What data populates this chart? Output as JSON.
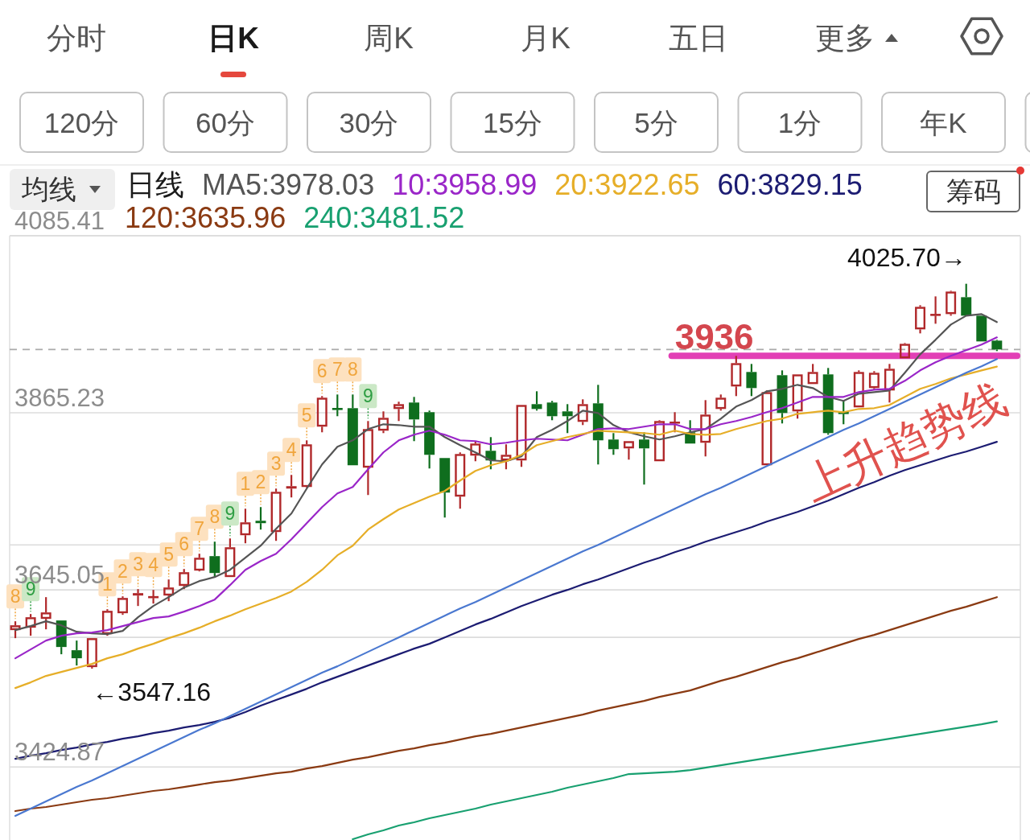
{
  "chart_data": {
    "type": "candlestick",
    "legend_title": "日线",
    "legend": "top",
    "grid": "y",
    "tick_labels": "y",
    "categories": [
      null,
      null,
      null,
      null,
      null,
      null,
      null,
      null,
      null,
      null,
      null,
      null,
      null,
      null,
      null,
      null,
      null,
      null,
      null,
      null,
      null,
      null,
      null,
      null,
      null,
      null,
      null,
      null,
      null,
      null,
      null,
      null,
      null,
      null,
      null,
      null,
      null,
      null,
      null,
      null,
      null,
      null,
      null,
      null,
      null,
      null,
      null,
      null,
      null,
      null,
      null,
      null,
      null,
      null,
      null,
      null,
      null,
      null,
      null,
      null,
      null,
      null,
      null,
      null,
      null
    ],
    "ylim": [
      3334,
      4085.41
    ],
    "yticks": [
      4085.41,
      3865.23,
      {
        "value": 3701,
        "label": null
      },
      3645.05,
      {
        "value": 3586,
        "label": null
      },
      3424.87
    ],
    "series": [
      {
        "ohlc": [
          [
            3595,
            3606,
            3585,
            3601
          ],
          [
            3598,
            3615,
            3588,
            3611
          ],
          [
            3609,
            3636,
            3596,
            3617
          ],
          [
            3607,
            3607,
            3565,
            3574
          ],
          [
            3570,
            3582,
            3551,
            3560
          ],
          [
            3549,
            3585,
            3547.16,
            3585
          ],
          [
            3590,
            3621,
            3588,
            3619
          ],
          [
            3616,
            3637,
            3614,
            3635
          ],
          [
            3638,
            3646,
            3625,
            3641
          ],
          [
            3635,
            3645,
            3628,
            3637
          ],
          [
            3638,
            3658,
            3631,
            3648
          ],
          [
            3650,
            3671,
            3646,
            3667
          ],
          [
            3669,
            3690,
            3668,
            3685
          ],
          [
            3687,
            3705,
            3661,
            3666
          ],
          [
            3661,
            3709,
            3661,
            3698
          ],
          [
            3713,
            3746,
            3703,
            3729
          ],
          [
            3731,
            3748,
            3720,
            3728
          ],
          [
            3717,
            3771,
            3706,
            3767
          ],
          [
            3771,
            3788,
            3760,
            3774
          ],
          [
            3773,
            3831,
            3772,
            3826
          ],
          [
            3848,
            3886,
            3841,
            3884
          ],
          [
            3871,
            3888,
            3861,
            3869
          ],
          [
            3871,
            3888,
            3800,
            3800
          ],
          [
            3797,
            3855,
            3763,
            3845
          ],
          [
            3843,
            3867,
            3840,
            3859
          ],
          [
            3870,
            3879,
            3855,
            3876
          ],
          [
            3878,
            3885,
            3830,
            3857
          ],
          [
            3866,
            3868,
            3796,
            3813
          ],
          [
            3809,
            3809,
            3735,
            3766
          ],
          [
            3761,
            3816,
            3746,
            3814
          ],
          [
            3812,
            3830,
            3805,
            3827
          ],
          [
            3818,
            3835,
            3795,
            3806
          ],
          [
            3806,
            3826,
            3795,
            3813
          ],
          [
            3806,
            3875,
            3798,
            3875
          ],
          [
            3876,
            3892,
            3868,
            3870
          ],
          [
            3878,
            3880,
            3856,
            3861
          ],
          [
            3867,
            3876,
            3840,
            3861
          ],
          [
            3854,
            3882,
            3850,
            3876
          ],
          [
            3877,
            3900,
            3801,
            3831
          ],
          [
            3832,
            3840,
            3813,
            3820
          ],
          [
            3821,
            3830,
            3807,
            3830
          ],
          [
            3832,
            3841,
            3776,
            3821
          ],
          [
            3805,
            3856,
            3805,
            3855
          ],
          [
            3852,
            3866,
            3841,
            3854
          ],
          [
            3841,
            3856,
            3827,
            3827
          ],
          [
            3828,
            3881,
            3811,
            3863
          ],
          [
            3870,
            3888,
            3868,
            3884
          ],
          [
            3898,
            3936,
            3886,
            3927
          ],
          [
            3916,
            3926,
            3886,
            3896
          ],
          [
            3800,
            3893,
            3800,
            3891
          ],
          [
            3912,
            3918,
            3852,
            3865
          ],
          [
            3867,
            3913,
            3858,
            3913
          ],
          [
            3901,
            3926,
            3901,
            3916
          ],
          [
            3913,
            3921,
            3838,
            3840
          ],
          [
            3866,
            3881,
            3851,
            3864
          ],
          [
            3872,
            3918,
            3872,
            3916
          ],
          [
            3896,
            3917,
            3894,
            3915
          ],
          [
            3893,
            3926,
            3878,
            3920
          ],
          [
            3933,
            3952,
            3933,
            3951
          ],
          [
            3969,
            3999,
            3964,
            3997
          ],
          [
            3986,
            4010,
            3976,
            3988
          ],
          [
            3988,
            4017,
            3986,
            4016
          ],
          [
            4009,
            4025.7,
            3986,
            3986
          ],
          [
            3986,
            3986,
            3954,
            3954
          ],
          [
            3955,
            3956,
            3942,
            3944
          ]
        ],
        "value_labels": [
          "8",
          "9",
          null,
          null,
          null,
          null,
          "1",
          "2",
          "3",
          "4",
          "5",
          "6",
          "7",
          "8",
          "9",
          "1",
          "2",
          "3",
          "4",
          "5",
          "6",
          "7",
          "8",
          "9",
          null,
          null,
          null,
          null,
          null,
          null,
          null,
          null,
          null,
          null,
          null,
          null,
          null,
          null,
          null,
          null,
          null,
          null,
          null,
          null,
          null,
          null,
          null,
          null,
          null,
          null,
          null,
          null,
          null,
          null,
          null,
          null,
          null,
          null,
          null,
          null,
          null,
          null,
          null,
          null,
          null
        ]
      },
      {
        "type": "line",
        "name": "MA5:3978.03",
        "color": "#555555",
        "values": [
          3595,
          3600,
          3606,
          3601,
          3593,
          3591,
          3590,
          3594,
          3611,
          3625,
          3636,
          3648,
          3656,
          3661,
          3670,
          3685,
          3700,
          3721,
          3740,
          3771,
          3801,
          3823,
          3831,
          3845,
          3851,
          3850,
          3848,
          3848,
          3835,
          3825,
          3816,
          3806,
          3805,
          3811,
          3835,
          3844,
          3855,
          3868,
          3865,
          3850,
          3841,
          3836,
          3832,
          3836,
          3841,
          3845,
          3858,
          3873,
          3881,
          3892,
          3895,
          3900,
          3896,
          3885,
          3880,
          3889,
          3891,
          3893,
          3915,
          3938,
          3956,
          3975,
          3986,
          3988,
          3978.03
        ]
      },
      {
        "type": "line",
        "name": "10:3958.99",
        "color": "#9a26c8",
        "values": [
          3560,
          3571,
          3582,
          3588,
          3591,
          3592,
          3595,
          3600,
          3605,
          3610,
          3612,
          3618,
          3625,
          3633,
          3651,
          3670,
          3681,
          3690,
          3708,
          3728,
          3748,
          3765,
          3773,
          3795,
          3816,
          3831,
          3838,
          3843,
          3838,
          3831,
          3830,
          3826,
          3828,
          3831,
          3833,
          3832,
          3831,
          3838,
          3845,
          3846,
          3845,
          3848,
          3851,
          3851,
          3845,
          3845,
          3851,
          3855,
          3860,
          3866,
          3871,
          3878,
          3885,
          3885,
          3885,
          3891,
          3894,
          3895,
          3905,
          3918,
          3928,
          3936,
          3943,
          3950,
          3958.99
        ]
      },
      {
        "type": "line",
        "name": "20:3922.65",
        "color": "#e6ae28",
        "values": [
          3523,
          3530,
          3538,
          3543,
          3548,
          3553,
          3560,
          3565,
          3572,
          3578,
          3585,
          3591,
          3598,
          3606,
          3613,
          3621,
          3628,
          3635,
          3643,
          3655,
          3670,
          3688,
          3700,
          3720,
          3733,
          3745,
          3753,
          3761,
          3768,
          3781,
          3793,
          3800,
          3805,
          3813,
          3825,
          3830,
          3835,
          3839,
          3843,
          3842,
          3841,
          3840,
          3838,
          3843,
          3839,
          3838,
          3839,
          3845,
          3850,
          3855,
          3858,
          3864,
          3866,
          3868,
          3866,
          3870,
          3871,
          3875,
          3885,
          3895,
          3901,
          3908,
          3913,
          3918,
          3922.65
        ]
      },
      {
        "type": "line",
        "name": "60:3829.15",
        "color": "#1c1c72",
        "values": [
          3435,
          3439,
          3442,
          3446,
          3449,
          3453,
          3456,
          3460,
          3463,
          3467,
          3470,
          3474,
          3477,
          3481,
          3486,
          3493,
          3501,
          3508,
          3515,
          3522,
          3530,
          3537,
          3544,
          3551,
          3558,
          3565,
          3572,
          3578,
          3586,
          3594,
          3602,
          3609,
          3617,
          3625,
          3632,
          3639,
          3645,
          3652,
          3658,
          3665,
          3672,
          3679,
          3685,
          3692,
          3698,
          3705,
          3711,
          3717,
          3723,
          3730,
          3736,
          3742,
          3749,
          3756,
          3764,
          3772,
          3779,
          3787,
          3794,
          3800,
          3806,
          3812,
          3817,
          3823,
          3829.15
        ]
      },
      {
        "type": "line",
        "name": "120:3635.96",
        "color": "#8a3a12",
        "values": [
          3370,
          3373,
          3375,
          3378,
          3381,
          3384,
          3386,
          3389,
          3392,
          3395,
          3397,
          3400,
          3403,
          3406,
          3408,
          3411,
          3414,
          3417,
          3419,
          3423,
          3426,
          3430,
          3434,
          3437,
          3441,
          3445,
          3448,
          3452,
          3455,
          3459,
          3463,
          3466,
          3470,
          3474,
          3478,
          3482,
          3486,
          3490,
          3495,
          3499,
          3503,
          3507,
          3512,
          3516,
          3520,
          3526,
          3532,
          3537,
          3543,
          3549,
          3555,
          3560,
          3566,
          3572,
          3578,
          3584,
          3589,
          3595,
          3601,
          3607,
          3613,
          3619,
          3624,
          3630,
          3635.96
        ]
      },
      {
        "type": "line",
        "name": "240:3481.52",
        "color": "#18a070",
        "values": [
          null,
          null,
          null,
          null,
          null,
          null,
          null,
          null,
          null,
          null,
          null,
          null,
          null,
          null,
          null,
          null,
          null,
          null,
          null,
          null,
          null,
          null,
          3335,
          3341,
          3346,
          3352,
          3356,
          3361,
          3365,
          3369,
          3373,
          3378,
          3382,
          3386,
          3390,
          3394,
          3399,
          3403,
          3407,
          3411,
          3416,
          3417,
          3418,
          3419,
          3421,
          3424,
          3427,
          3430,
          3433,
          3436,
          3439,
          3442,
          3445,
          3448,
          3451,
          3454,
          3457,
          3460,
          3463,
          3466,
          3469,
          3472,
          3475,
          3478,
          3481.52
        ]
      },
      {
        "type": "line",
        "color": "#4a78d0",
        "values": [
          3364,
          3373,
          3382,
          3391,
          3400,
          3408,
          3417,
          3426,
          3435,
          3444,
          3453,
          3462,
          3471,
          3479,
          3488,
          3497,
          3506,
          3515,
          3524,
          3533,
          3542,
          3550,
          3559,
          3568,
          3577,
          3586,
          3595,
          3604,
          3613,
          3622,
          3630,
          3639,
          3648,
          3657,
          3666,
          3675,
          3684,
          3693,
          3701,
          3710,
          3719,
          3728,
          3737,
          3746,
          3755,
          3764,
          3772,
          3781,
          3790,
          3799,
          3808,
          3817,
          3826,
          3835,
          3844,
          3852,
          3861,
          3870,
          3879,
          3888,
          3897,
          3906,
          3915,
          3923,
          3932
        ]
      }
    ],
    "ref_lines": [
      {
        "axis": "y",
        "value": 3944,
        "line_style": "dashed",
        "color": "#aaaaaa"
      },
      {
        "axis": "y",
        "value": 3936,
        "label": "3936",
        "color": "#e23fb5"
      }
    ],
    "annotations": [
      "分时",
      "日K",
      "周K",
      "月K",
      "五日",
      "更多",
      "120分",
      "60分",
      "30分",
      "15分",
      "5分",
      "1分",
      "年K",
      "均线",
      "筹码",
      "4025.70→",
      "←3547.16",
      "上升趋势线"
    ]
  }
}
